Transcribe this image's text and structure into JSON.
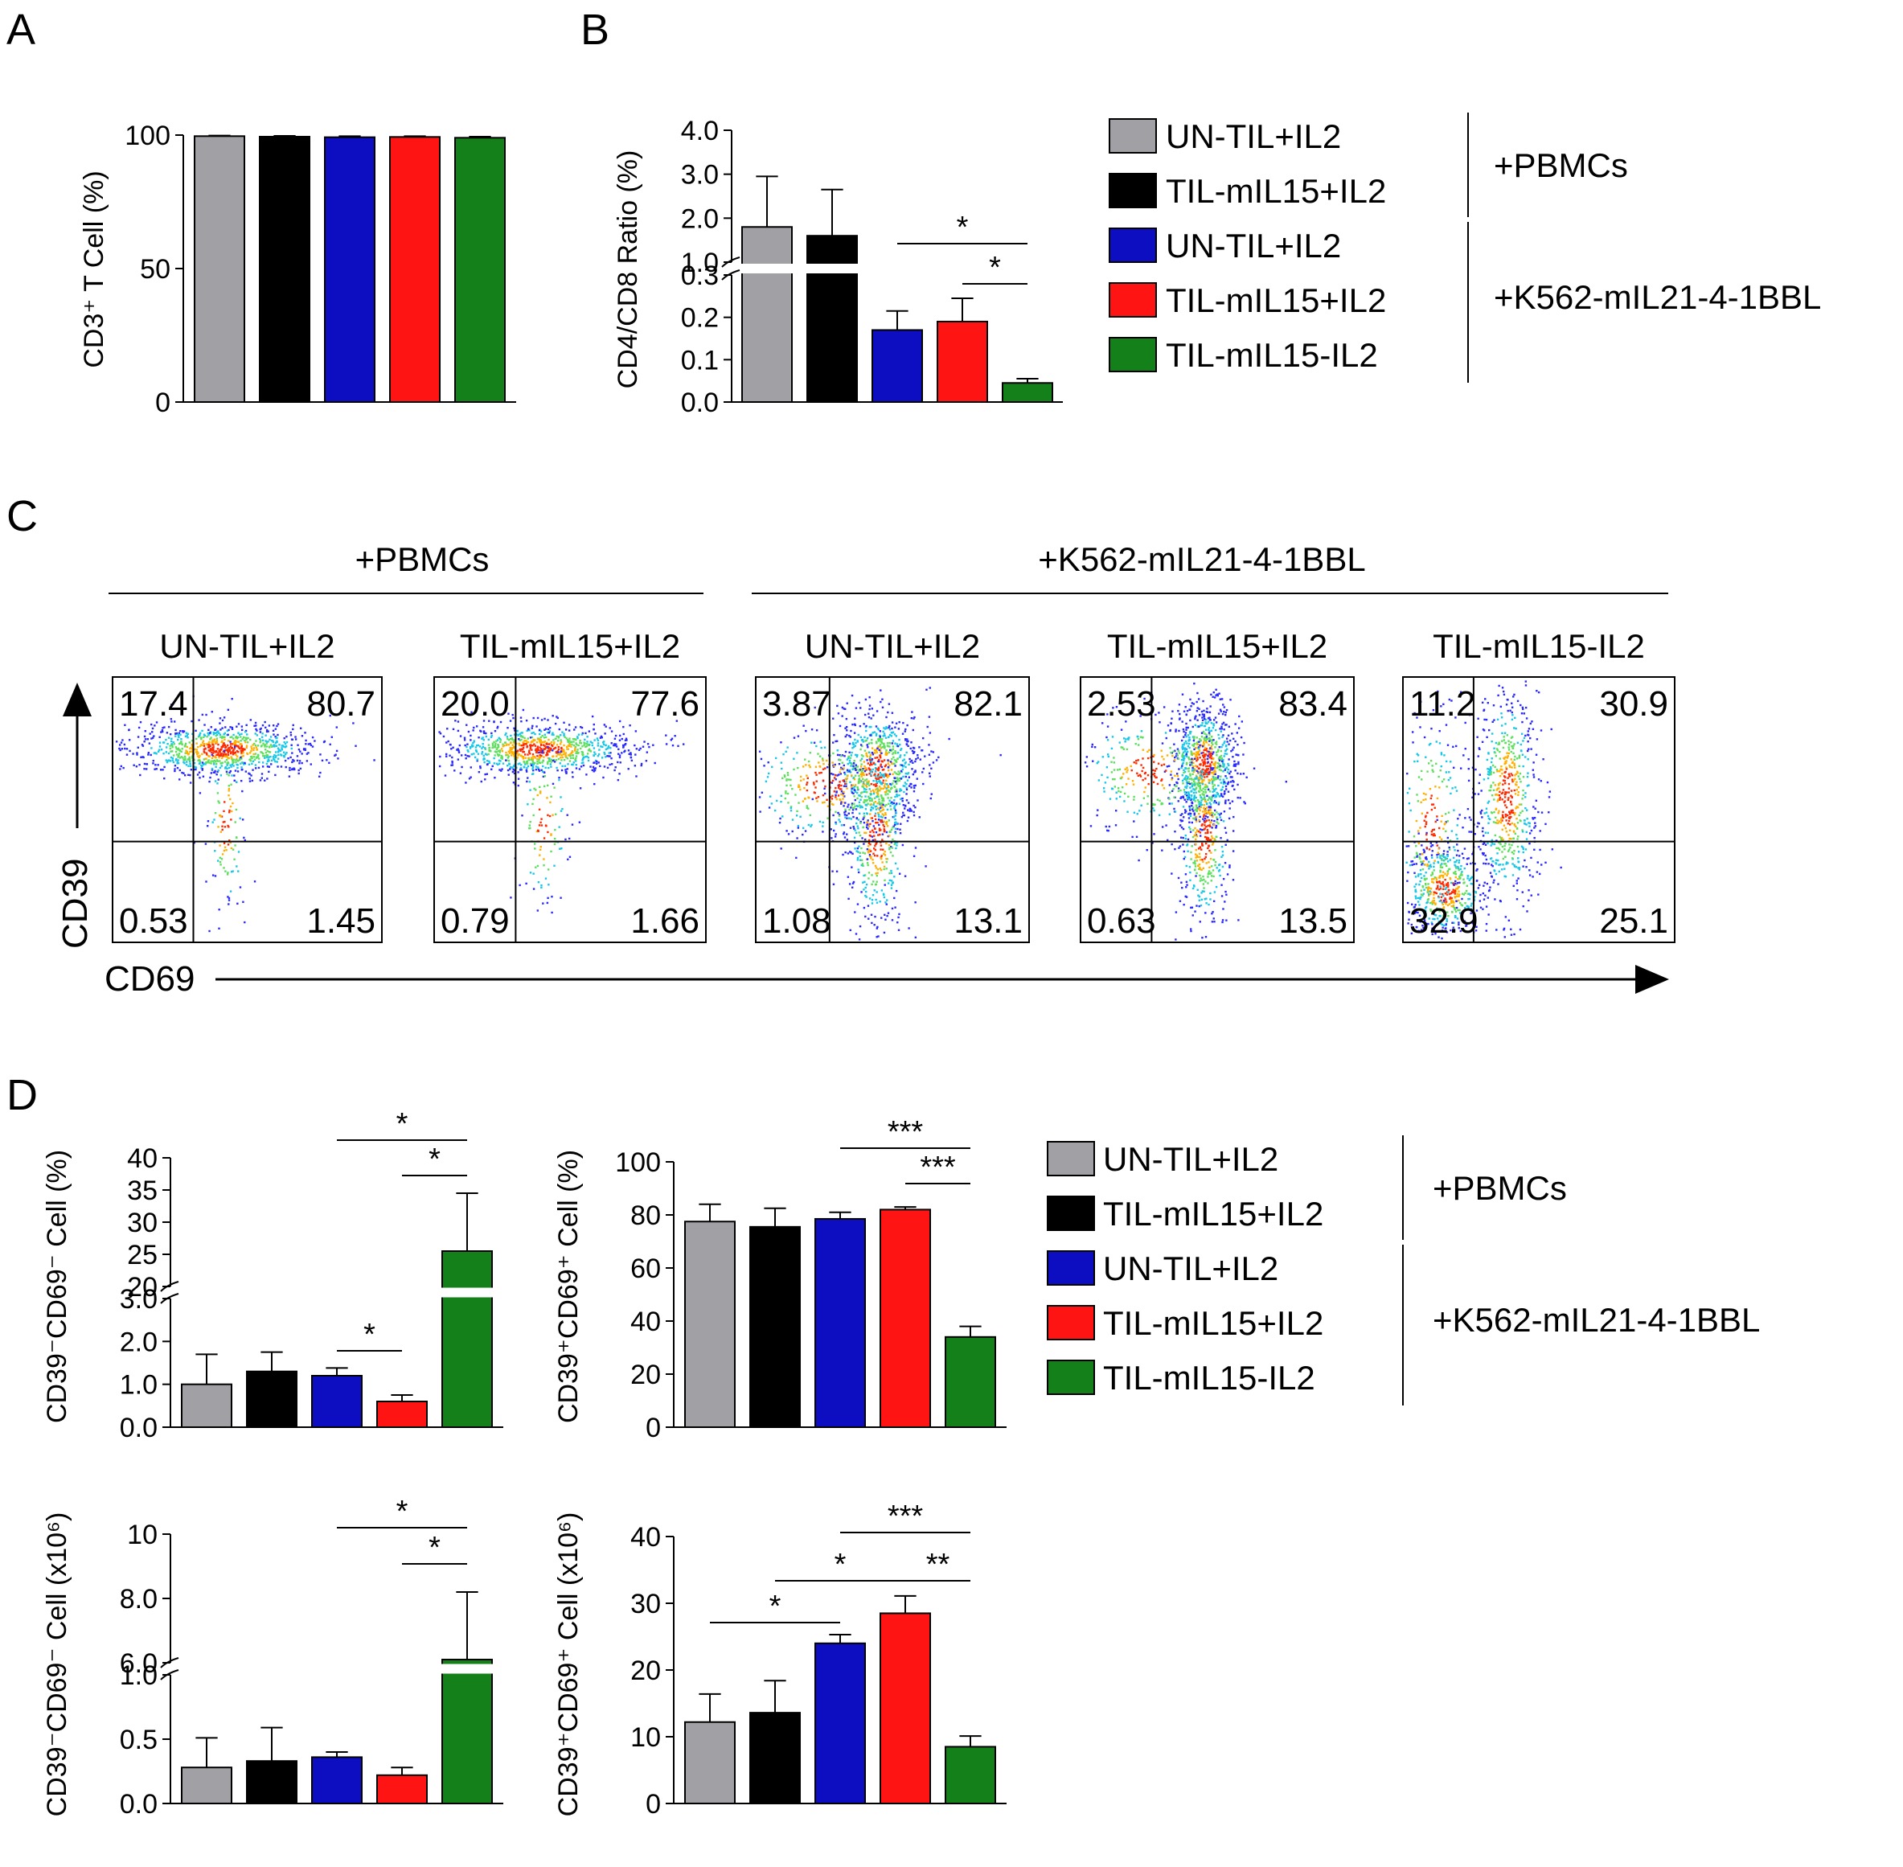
{
  "colors": {
    "grey": "#a0a0a5",
    "black": "#000000",
    "blue": "#0d0dc2",
    "red": "#ff1414",
    "green": "#13801a"
  },
  "groups": [
    {
      "label": "UN-TIL+IL2",
      "color": "#a0a0a5"
    },
    {
      "label": "TIL-mIL15+IL2",
      "color": "#000000"
    },
    {
      "label": "UN-TIL+IL2",
      "color": "#0d0dc2"
    },
    {
      "label": "TIL-mIL15+IL2",
      "color": "#ff1414"
    },
    {
      "label": "TIL-mIL15-IL2",
      "color": "#13801a"
    }
  ],
  "legend_groups": [
    "+PBMCs",
    "+K562-mIL21-4-1BBL"
  ],
  "panel_letters": [
    "A",
    "B",
    "C",
    "D"
  ],
  "chart_data": [
    {
      "id": "A",
      "type": "bar",
      "categories": [
        "UN-TIL+IL2",
        "TIL-mIL15+IL2",
        "UN-TIL+IL2",
        "TIL-mIL15+IL2",
        "TIL-mIL15-IL2"
      ],
      "values": [
        99.6,
        99.4,
        99.2,
        99.3,
        99.0
      ],
      "errors": [
        0.2,
        0.3,
        0.4,
        0.3,
        0.4
      ],
      "ylabel": "CD3⁺ T Cell (%)",
      "ylim": [
        0,
        100
      ],
      "yticks": [
        0,
        50,
        100
      ],
      "yticklabels": [
        "0",
        "50",
        "100"
      ]
    },
    {
      "id": "B",
      "type": "bar",
      "broken_axis": true,
      "categories": [
        "UN-TIL+IL2",
        "TIL-mIL15+IL2",
        "UN-TIL+IL2",
        "TIL-mIL15+IL2",
        "TIL-mIL15-IL2"
      ],
      "values": [
        1.8,
        1.6,
        0.17,
        0.19,
        0.045
      ],
      "errors": [
        1.15,
        1.05,
        0.045,
        0.055,
        0.01
      ],
      "ylabel": "CD4/CD8 Ratio (%)",
      "lower_range": [
        0,
        0.3
      ],
      "upper_range": [
        1.0,
        4.0
      ],
      "yticks_lower": [
        "0.0",
        "0.1",
        "0.2",
        "0.3"
      ],
      "yticks_upper": [
        "1.0",
        "2.0",
        "3.0",
        "4.0"
      ],
      "significance": [
        {
          "from": 2,
          "to": 4,
          "label": "*"
        },
        {
          "from": 3,
          "to": 4,
          "label": "*"
        }
      ]
    },
    {
      "id": "D1",
      "type": "bar",
      "broken_axis": true,
      "categories": [
        "UN-TIL+IL2",
        "TIL-mIL15+IL2",
        "UN-TIL+IL2",
        "TIL-mIL15+IL2",
        "TIL-mIL15-IL2"
      ],
      "values": [
        1.0,
        1.3,
        1.2,
        0.6,
        25.5
      ],
      "errors": [
        0.7,
        0.45,
        0.18,
        0.15,
        9.0
      ],
      "ylabel": "CD39⁻CD69⁻ Cell (%)",
      "lower_range": [
        0,
        3.0
      ],
      "upper_range": [
        20,
        40
      ],
      "yticks_lower": [
        "0.0",
        "1.0",
        "2.0",
        "3.0"
      ],
      "yticks_upper": [
        "20",
        "25",
        "30",
        "35",
        "40"
      ],
      "significance": [
        {
          "from": 2,
          "to": 4,
          "label": "*"
        },
        {
          "from": 3,
          "to": 4,
          "label": "*"
        },
        {
          "from": 2,
          "to": 3,
          "label": "*"
        }
      ]
    },
    {
      "id": "D2",
      "type": "bar",
      "categories": [
        "UN-TIL+IL2",
        "TIL-mIL15+IL2",
        "UN-TIL+IL2",
        "TIL-mIL15+IL2",
        "TIL-mIL15-IL2"
      ],
      "values": [
        77.5,
        75.5,
        78.5,
        82,
        34
      ],
      "errors": [
        6.5,
        7,
        2.5,
        1,
        4
      ],
      "ylabel": "CD39⁺CD69⁺ Cell (%)",
      "ylim": [
        0,
        100
      ],
      "yticks": [
        0,
        20,
        40,
        60,
        80,
        100
      ],
      "yticklabels": [
        "0",
        "20",
        "40",
        "60",
        "80",
        "100"
      ],
      "significance": [
        {
          "from": 2,
          "to": 4,
          "label": "***"
        },
        {
          "from": 3,
          "to": 4,
          "label": "***"
        }
      ]
    },
    {
      "id": "D3",
      "type": "bar",
      "broken_axis": true,
      "categories": [
        "UN-TIL+IL2",
        "TIL-mIL15+IL2",
        "UN-TIL+IL2",
        "TIL-mIL15+IL2",
        "TIL-mIL15-IL2"
      ],
      "values": [
        0.28,
        0.33,
        0.36,
        0.22,
        6.1
      ],
      "errors": [
        0.23,
        0.26,
        0.04,
        0.06,
        2.1
      ],
      "ylabel": "CD39⁻CD69⁻ Cell (x10⁶)",
      "lower_range": [
        0,
        1.0
      ],
      "upper_range": [
        6.0,
        10
      ],
      "yticks_lower": [
        "0.0",
        "0.5",
        "1.0"
      ],
      "yticks_upper": [
        "6.0",
        "8.0",
        "10"
      ],
      "significance": [
        {
          "from": 2,
          "to": 4,
          "label": "*"
        },
        {
          "from": 3,
          "to": 4,
          "label": "*"
        }
      ]
    },
    {
      "id": "D4",
      "type": "bar",
      "categories": [
        "UN-TIL+IL2",
        "TIL-mIL15+IL2",
        "UN-TIL+IL2",
        "TIL-mIL15+IL2",
        "TIL-mIL15-IL2"
      ],
      "values": [
        12.2,
        13.6,
        24,
        28.5,
        8.5
      ],
      "errors": [
        4.2,
        4.8,
        1.3,
        2.6,
        1.6
      ],
      "ylabel": "CD39⁺CD69⁺ Cell (x10⁶)",
      "ylim": [
        0,
        40
      ],
      "yticks": [
        0,
        10,
        20,
        30,
        40
      ],
      "yticklabels": [
        "0",
        "10",
        "20",
        "30",
        "40"
      ],
      "significance": [
        {
          "from": 2,
          "to": 4,
          "label": "***"
        },
        {
          "from": 1,
          "to": 3,
          "label": "*"
        },
        {
          "from": 3,
          "to": 4,
          "label": "**"
        },
        {
          "from": 0,
          "to": 2,
          "label": "*"
        }
      ]
    },
    {
      "id": "C",
      "type": "scatter",
      "xlabel": "CD69",
      "ylabel": "CD39",
      "groups": [
        "+PBMCs",
        "+K562-mIL21-4-1BBL"
      ],
      "plots": [
        {
          "label": "UN-TIL+IL2",
          "quadrants": [
            "17.4",
            "80.7",
            "0.53",
            "1.45"
          ]
        },
        {
          "label": "TIL-mIL15+IL2",
          "quadrants": [
            "20.0",
            "77.6",
            "0.79",
            "1.66"
          ]
        },
        {
          "label": "UN-TIL+IL2",
          "quadrants": [
            "3.87",
            "82.1",
            "1.08",
            "13.1"
          ]
        },
        {
          "label": "TIL-mIL15+IL2",
          "quadrants": [
            "2.53",
            "83.4",
            "0.63",
            "13.5"
          ]
        },
        {
          "label": "TIL-mIL15-IL2",
          "quadrants": [
            "11.2",
            "30.9",
            "32.9",
            "25.1"
          ]
        }
      ]
    }
  ]
}
